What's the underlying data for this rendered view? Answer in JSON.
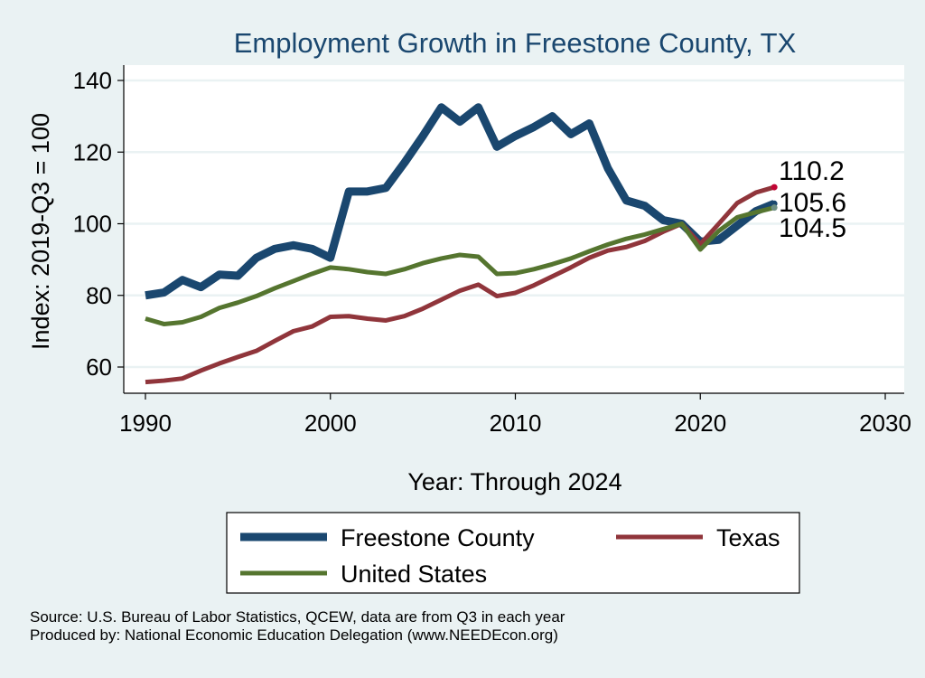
{
  "chart_data": {
    "type": "line",
    "title": "Employment Growth in Freestone County, TX",
    "xlabel": "Year: Through 2024",
    "ylabel": "Index: 2019-Q3 = 100",
    "xlim": [
      1990,
      2030
    ],
    "ylim": [
      52,
      144
    ],
    "xticks": [
      1990,
      2000,
      2010,
      2020,
      2030
    ],
    "yticks": [
      60,
      80,
      100,
      120,
      140
    ],
    "grid": true,
    "legend_position": "bottom",
    "x": [
      1990,
      1991,
      1992,
      1993,
      1994,
      1995,
      1996,
      1997,
      1998,
      1999,
      2000,
      2001,
      2002,
      2003,
      2004,
      2005,
      2006,
      2007,
      2008,
      2009,
      2010,
      2011,
      2012,
      2013,
      2014,
      2015,
      2016,
      2017,
      2018,
      2019,
      2020,
      2021,
      2022,
      2023,
      2024
    ],
    "series": [
      {
        "name": "Freestone  County",
        "color": "#1a476f",
        "end_label": "105.6",
        "values": [
          80,
          80.8,
          84.3,
          82.3,
          85.8,
          85.5,
          90.5,
          93,
          94,
          93,
          90.5,
          109,
          109,
          110,
          117,
          124.5,
          132.5,
          128.5,
          132.5,
          121.5,
          124.5,
          127,
          130,
          125,
          128,
          115.5,
          106.5,
          105,
          101,
          100,
          95,
          95.5,
          99.5,
          103.5,
          105.6
        ]
      },
      {
        "name": "Texas",
        "color": "#90353b",
        "end_label": "110.2",
        "values": [
          55.8,
          56.2,
          56.8,
          59,
          61,
          62.8,
          64.5,
          67.3,
          70,
          71.3,
          74,
          74.2,
          73.5,
          73,
          74.2,
          76.3,
          78.8,
          81.3,
          83,
          79.8,
          80.7,
          82.8,
          85.3,
          87.8,
          90.5,
          92.5,
          93.5,
          95.2,
          97.8,
          100,
          94.3,
          100,
          105.8,
          108.7,
          110.2
        ]
      },
      {
        "name": "United States",
        "color": "#55752f",
        "end_label": "104.5",
        "values": [
          73.5,
          72,
          72.5,
          74,
          76.5,
          78,
          79.8,
          82,
          84,
          86,
          87.8,
          87.3,
          86.5,
          86,
          87.3,
          89,
          90.3,
          91.3,
          90.8,
          86,
          86.2,
          87.3,
          88.7,
          90.3,
          92.3,
          94.2,
          95.8,
          97,
          98.5,
          100,
          92.8,
          98,
          101.8,
          103.2,
          104.5
        ]
      }
    ],
    "notes": [
      "Source: U.S. Bureau of Labor Statistics, QCEW, data are from Q3 in each year",
      "Produced by: National Economic Education Delegation (www.NEEDEcon.org)"
    ]
  }
}
